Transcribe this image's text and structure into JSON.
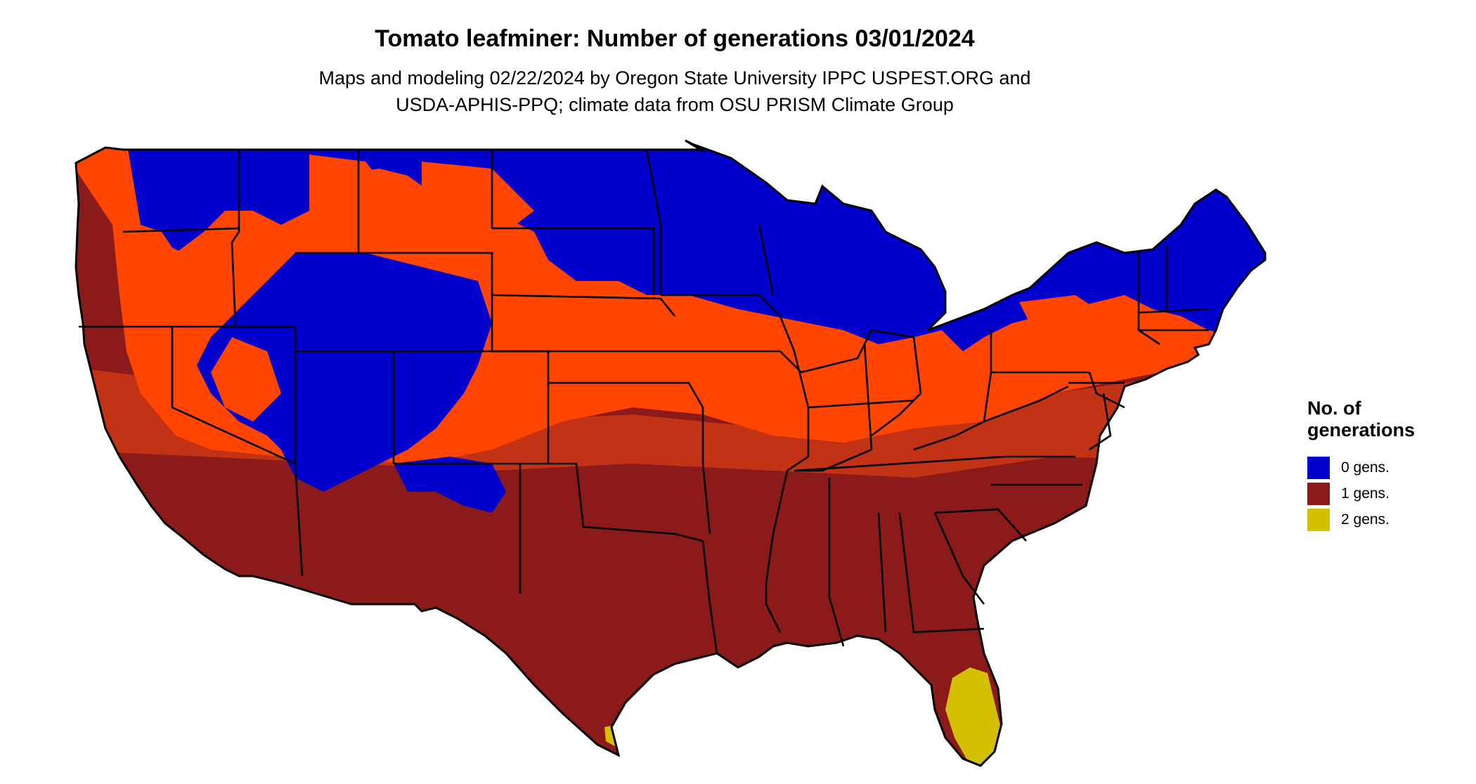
{
  "title": "Tomato leafminer: Number of generations 03/01/2024",
  "subtitle_line1": "Maps and modeling 02/22/2024 by Oregon State University IPPC USPEST.ORG and",
  "subtitle_line2": "USDA-APHIS-PPQ; climate data from OSU PRISM Climate Group",
  "legend": {
    "title_line1": "No. of",
    "title_line2": "generations",
    "items": [
      {
        "label": "0 gens.",
        "color": "#0000cc"
      },
      {
        "label": "1 gens.",
        "color": "#8b1a1a"
      },
      {
        "label": "2 gens.",
        "color": "#d4c000"
      }
    ]
  },
  "colors": {
    "gens0": "#0000cc",
    "gens1": "#8b1a1a",
    "gens1_transition": "#ff4500",
    "gens1_transition_mid": "#e84010",
    "gens2": "#d4c000",
    "border": "#000000",
    "background": "#ffffff"
  }
}
